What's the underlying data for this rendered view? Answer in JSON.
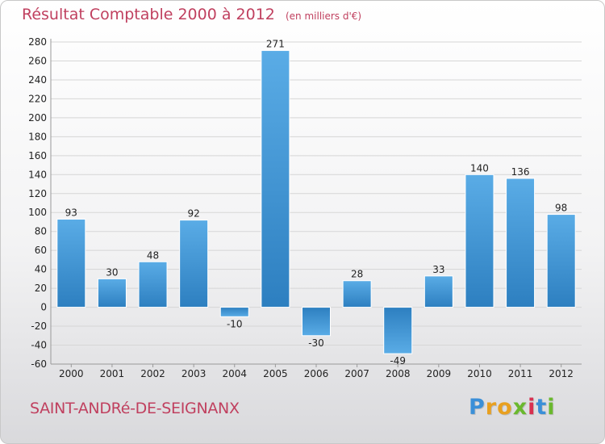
{
  "title": "Résultat Comptable 2000 à 2012",
  "subtitle": "(en milliers d'€)",
  "commune": "SAINT-ANDRé-DE-SEIGNANX",
  "logo": {
    "letters": [
      "P",
      "r",
      "o",
      "x",
      "i",
      "t",
      "i"
    ],
    "colors": [
      "#3a8fd8",
      "#e8a020",
      "#e8a020",
      "#6ab82e",
      "#d83050",
      "#3a8fd8",
      "#6ab82e"
    ]
  },
  "colors": {
    "bar_light": "#5aace6",
    "bar_dark": "#2d7fc0",
    "grid": "#d6d6d6",
    "text": "#222222",
    "title": "#c0405f"
  },
  "chart_data": {
    "type": "bar",
    "categories": [
      "2000",
      "2001",
      "2002",
      "2003",
      "2004",
      "2005",
      "2006",
      "2007",
      "2008",
      "2009",
      "2010",
      "2011",
      "2012"
    ],
    "values": [
      93,
      30,
      48,
      92,
      -10,
      271,
      -30,
      28,
      -49,
      33,
      140,
      136,
      98
    ],
    "labels": [
      "93",
      "30",
      "48",
      "92",
      "-10",
      "271",
      "-30",
      "28",
      "-49",
      "33",
      "140",
      "136",
      "98"
    ],
    "ylim": [
      -60,
      280
    ],
    "yticks": [
      -60,
      -40,
      -20,
      0,
      20,
      40,
      60,
      80,
      100,
      120,
      140,
      160,
      180,
      200,
      220,
      240,
      260,
      280
    ],
    "title": "Résultat Comptable 2000 à 2012",
    "xlabel": "",
    "ylabel": "",
    "grid": true
  }
}
